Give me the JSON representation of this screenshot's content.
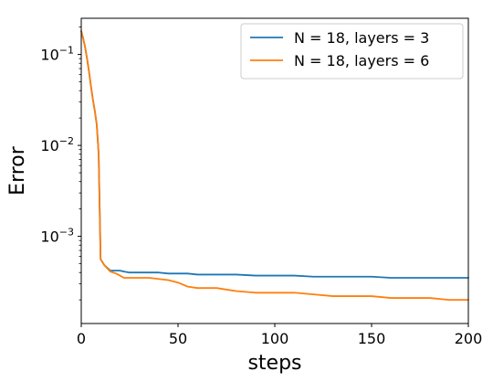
{
  "chart_data": {
    "type": "line",
    "xlabel": "steps",
    "ylabel": "Error",
    "xlim": [
      0,
      200
    ],
    "ylim": [
      0.00011,
      0.25
    ],
    "yscale": "log",
    "grid": false,
    "legend_position": "top-right",
    "x_ticks": [
      {
        "value": 0,
        "label": "0"
      },
      {
        "value": 50,
        "label": "50"
      },
      {
        "value": 100,
        "label": "100"
      },
      {
        "value": 150,
        "label": "150"
      },
      {
        "value": 200,
        "label": "200"
      }
    ],
    "y_ticks": [
      {
        "value": 0.1,
        "base": "10",
        "exp": "−1"
      },
      {
        "value": 0.01,
        "base": "10",
        "exp": "−2"
      },
      {
        "value": 0.001,
        "base": "10",
        "exp": "−3"
      }
    ],
    "series": [
      {
        "name": "N = 18, layers = 3",
        "color": "#1f77b4",
        "x": [
          0,
          1,
          2,
          3,
          4,
          5,
          6,
          7,
          8,
          9,
          10,
          12,
          15,
          18,
          20,
          22,
          25,
          30,
          35,
          40,
          45,
          50,
          55,
          60,
          70,
          80,
          90,
          100,
          110,
          120,
          130,
          140,
          150,
          160,
          170,
          180,
          190,
          200
        ],
        "y": [
          0.18,
          0.15,
          0.12,
          0.09,
          0.065,
          0.045,
          0.032,
          0.024,
          0.017,
          0.008,
          0.00056,
          0.00048,
          0.00042,
          0.00042,
          0.00042,
          0.00041,
          0.0004,
          0.0004,
          0.0004,
          0.0004,
          0.00039,
          0.00039,
          0.00039,
          0.00038,
          0.00038,
          0.00038,
          0.00037,
          0.00037,
          0.00037,
          0.00036,
          0.00036,
          0.00036,
          0.00036,
          0.00035,
          0.00035,
          0.00035,
          0.00035,
          0.00035
        ]
      },
      {
        "name": "N = 18, layers = 6",
        "color": "#ff7f0e",
        "x": [
          0,
          1,
          2,
          3,
          4,
          5,
          6,
          7,
          8,
          9,
          10,
          12,
          15,
          18,
          20,
          22,
          25,
          30,
          35,
          40,
          45,
          50,
          55,
          60,
          70,
          80,
          90,
          100,
          110,
          120,
          130,
          140,
          150,
          160,
          170,
          180,
          190,
          200
        ],
        "y": [
          0.18,
          0.15,
          0.12,
          0.09,
          0.065,
          0.045,
          0.032,
          0.024,
          0.017,
          0.008,
          0.00056,
          0.00048,
          0.00041,
          0.00039,
          0.00037,
          0.00035,
          0.00035,
          0.00035,
          0.00035,
          0.00034,
          0.00033,
          0.00031,
          0.00028,
          0.00027,
          0.00027,
          0.00025,
          0.00024,
          0.00024,
          0.00024,
          0.00023,
          0.00022,
          0.00022,
          0.00022,
          0.00021,
          0.00021,
          0.00021,
          0.0002,
          0.0002
        ]
      }
    ]
  }
}
